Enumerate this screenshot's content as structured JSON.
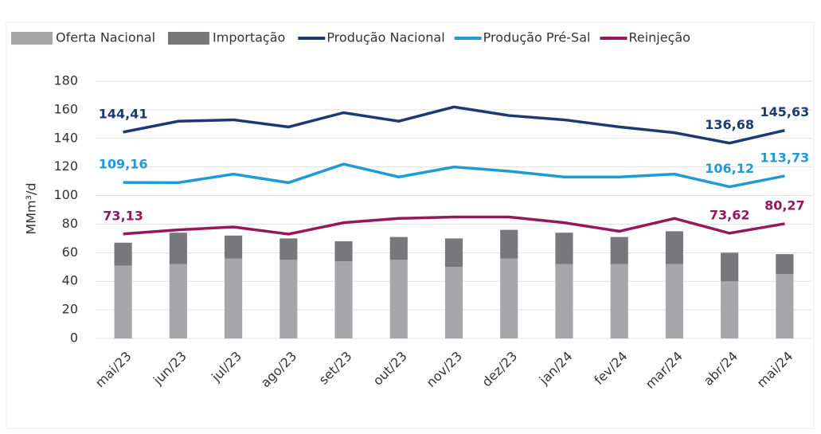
{
  "chart_data": {
    "type": "bar-line",
    "y_label": "MMm³/d",
    "categories": [
      "mai/23",
      "jun/23",
      "jul/23",
      "ago/23",
      "set/23",
      "out/23",
      "nov/23",
      "dez/23",
      "jan/24",
      "fev/24",
      "mar/24",
      "abr/24",
      "mai/24"
    ],
    "ylim": [
      0,
      180
    ],
    "yticks": [
      0,
      20,
      40,
      60,
      80,
      100,
      120,
      140,
      160,
      180
    ],
    "grid": true,
    "legend": "top",
    "bars": [
      {
        "name": "Oferta Nacional",
        "color": "#a7a6ab",
        "values": [
          51,
          52,
          56,
          55,
          54,
          55,
          50,
          56,
          52,
          52,
          52,
          40,
          45
        ]
      },
      {
        "name": "Importação",
        "color": "#78777b",
        "values": [
          16,
          22,
          16,
          15,
          14,
          16,
          20,
          20,
          22,
          19,
          23,
          20,
          14
        ]
      }
    ],
    "series": [
      {
        "name": "Produção Nacional",
        "color": "#1b3a73",
        "values": [
          144.41,
          152,
          153,
          148,
          158,
          152,
          162,
          156,
          153,
          148,
          144,
          136.68,
          145.63
        ],
        "value_labels": [
          "144,41",
          null,
          null,
          null,
          null,
          null,
          null,
          null,
          null,
          null,
          null,
          "136,68",
          "145,63"
        ]
      },
      {
        "name": "Produção Pré-Sal",
        "color": "#1f9ad6",
        "values": [
          109.16,
          109,
          115,
          109,
          122,
          113,
          120,
          117,
          113,
          113,
          115,
          106.12,
          113.73
        ],
        "value_labels": [
          "109,16",
          null,
          null,
          null,
          null,
          null,
          null,
          null,
          null,
          null,
          null,
          "106,12",
          "113,73"
        ]
      },
      {
        "name": "Reinjeção",
        "color": "#95195a",
        "values": [
          73.13,
          76,
          78,
          73,
          81,
          84,
          85,
          85,
          81,
          75,
          84,
          73.62,
          80.27
        ],
        "value_labels": [
          "73,13",
          null,
          null,
          null,
          null,
          null,
          null,
          null,
          null,
          null,
          null,
          "73,62",
          "80,27"
        ]
      }
    ]
  }
}
